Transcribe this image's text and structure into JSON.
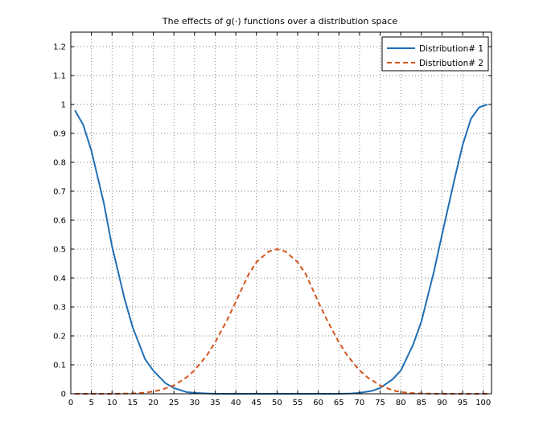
{
  "chart_data": {
    "type": "line",
    "title": "The effects of g(·) functions over a distribution space",
    "xlabel": "",
    "ylabel": "",
    "xlim": [
      0,
      102
    ],
    "ylim": [
      0,
      1.25
    ],
    "xticks": [
      0,
      5,
      10,
      15,
      20,
      25,
      30,
      35,
      40,
      45,
      50,
      55,
      60,
      65,
      70,
      75,
      80,
      85,
      90,
      95,
      100
    ],
    "yticks": [
      0,
      0.1,
      0.2,
      0.3,
      0.4,
      0.5,
      0.6,
      0.7,
      0.8,
      0.9,
      1,
      1.1,
      1.2
    ],
    "grid": true,
    "legend_position": "top-right",
    "series": [
      {
        "name": "Distribution# 1",
        "color": "#1f6fb4",
        "style": "solid",
        "x": [
          1,
          3,
          5,
          8,
          10,
          13,
          15,
          18,
          20,
          23,
          25,
          28,
          30,
          33,
          35,
          40,
          45,
          50,
          55,
          60,
          65,
          68,
          70,
          73,
          75,
          78,
          80,
          83,
          85,
          88,
          90,
          93,
          95,
          97,
          99,
          101
        ],
        "y": [
          0.98,
          0.93,
          0.84,
          0.66,
          0.51,
          0.33,
          0.23,
          0.12,
          0.08,
          0.036,
          0.02,
          0.006,
          0.003,
          0.001,
          0.0,
          0.0,
          0.0,
          0.0,
          0.0,
          0.0,
          0.0,
          0.001,
          0.003,
          0.01,
          0.02,
          0.05,
          0.08,
          0.17,
          0.25,
          0.42,
          0.55,
          0.74,
          0.86,
          0.95,
          0.99,
          1.0
        ]
      },
      {
        "name": "Distribution# 2",
        "color": "#d5531b",
        "style": "dashed",
        "x": [
          1,
          5,
          10,
          15,
          18,
          20,
          22,
          25,
          28,
          30,
          33,
          35,
          38,
          40,
          43,
          45,
          48,
          50,
          52,
          55,
          57,
          60,
          62,
          65,
          67,
          70,
          72,
          75,
          78,
          80,
          82,
          85,
          90,
          95,
          101
        ],
        "y": [
          0.0,
          0.0,
          0.0,
          0.001,
          0.004,
          0.008,
          0.014,
          0.029,
          0.056,
          0.081,
          0.133,
          0.178,
          0.258,
          0.318,
          0.41,
          0.455,
          0.492,
          0.5,
          0.492,
          0.455,
          0.413,
          0.318,
          0.258,
          0.178,
          0.133,
          0.081,
          0.056,
          0.029,
          0.012,
          0.006,
          0.003,
          0.001,
          0.0,
          0.0,
          0.0
        ]
      }
    ]
  }
}
